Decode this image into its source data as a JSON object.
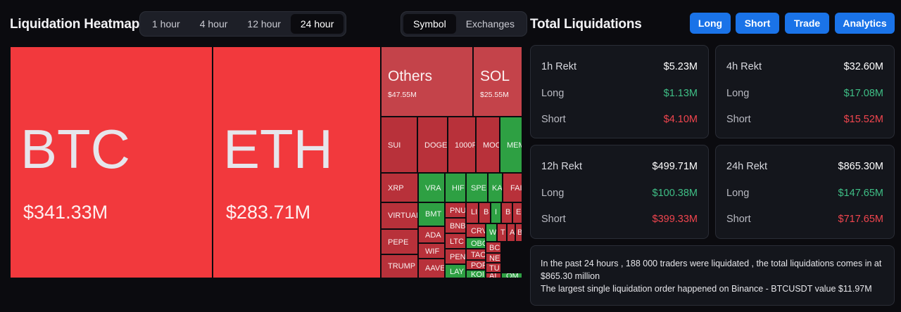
{
  "heatmap": {
    "title": "Liquidation Heatmap",
    "time_tabs": [
      "1 hour",
      "4 hour",
      "12 hour",
      "24 hour"
    ],
    "active_time_tab": "24 hour",
    "view_tabs": [
      "Symbol",
      "Exchanges"
    ],
    "active_view_tab": "Symbol"
  },
  "total": {
    "title": "Total Liquidations",
    "buttons": [
      "Long",
      "Short",
      "Trade",
      "Analytics"
    ]
  },
  "cells": [
    {
      "name": "BTC",
      "value": "$341.33M",
      "color": "r1"
    },
    {
      "name": "ETH",
      "value": "$283.71M",
      "color": "r1"
    },
    {
      "name": "Others",
      "value": "$47.55M",
      "color": "r2"
    },
    {
      "name": "SOL",
      "value": "$25.55M",
      "color": "r2"
    },
    {
      "name": "SUI",
      "color": "r3"
    },
    {
      "name": "DOGE",
      "color": "r3"
    },
    {
      "name": "1000P",
      "color": "r3"
    },
    {
      "name": "MOO",
      "color": "r3"
    },
    {
      "name": "MEM",
      "color": "g1"
    },
    {
      "name": "XRP",
      "color": "r3"
    },
    {
      "name": "VRA",
      "color": "g1"
    },
    {
      "name": "HIF",
      "color": "g1"
    },
    {
      "name": "SPE",
      "color": "g1"
    },
    {
      "name": "KA",
      "color": "g1"
    },
    {
      "name": "FAI",
      "color": "r3"
    },
    {
      "name": "VIRTUAL",
      "color": "r3"
    },
    {
      "name": "BMT",
      "color": "g1"
    },
    {
      "name": "PNU",
      "color": "r3"
    },
    {
      "name": "LI",
      "color": "r3"
    },
    {
      "name": "B",
      "color": "r3"
    },
    {
      "name": "I",
      "color": "g1"
    },
    {
      "name": "B",
      "color": "r3"
    },
    {
      "name": "E",
      "color": "r3"
    },
    {
      "name": "PEPE",
      "color": "r3"
    },
    {
      "name": "ADA",
      "color": "r3"
    },
    {
      "name": "BNB",
      "color": "r3"
    },
    {
      "name": "CRV",
      "color": "r3"
    },
    {
      "name": "W",
      "color": "g1"
    },
    {
      "name": "T",
      "color": "r3"
    },
    {
      "name": "A",
      "color": "r3"
    },
    {
      "name": "B",
      "color": "r3"
    },
    {
      "name": "WIF",
      "color": "r3"
    },
    {
      "name": "LTC",
      "color": "r3"
    },
    {
      "name": "OBO",
      "color": "g1"
    },
    {
      "name": "BC",
      "color": "r3"
    },
    {
      "name": "TRUMP",
      "color": "r3"
    },
    {
      "name": "PEN",
      "color": "r3"
    },
    {
      "name": "TAC",
      "color": "r3"
    },
    {
      "name": "NE",
      "color": "r3"
    },
    {
      "name": "AAVE",
      "color": "r3"
    },
    {
      "name": "LAY",
      "color": "g1"
    },
    {
      "name": "POP",
      "color": "r3"
    },
    {
      "name": "TU",
      "color": "r3"
    },
    {
      "name": "KOI",
      "color": "g1"
    },
    {
      "name": "AI",
      "color": "r3"
    },
    {
      "name": "OM",
      "color": "g1"
    }
  ],
  "cards": [
    {
      "title": "1h Rekt",
      "total": "$5.23M",
      "long_label": "Long",
      "long": "$1.13M",
      "short_label": "Short",
      "short": "$4.10M"
    },
    {
      "title": "4h Rekt",
      "total": "$32.60M",
      "long_label": "Long",
      "long": "$17.08M",
      "short_label": "Short",
      "short": "$15.52M"
    },
    {
      "title": "12h Rekt",
      "total": "$499.71M",
      "long_label": "Long",
      "long": "$100.38M",
      "short_label": "Short",
      "short": "$399.33M"
    },
    {
      "title": "24h Rekt",
      "total": "$865.30M",
      "long_label": "Long",
      "long": "$147.65M",
      "short_label": "Short",
      "short": "$717.65M"
    }
  ],
  "summary": {
    "line1": "In the past 24 hours , 188 000 traders were liquidated , the total liquidations comes in at $865.30 million",
    "line2": "The largest single liquidation order happened on Binance - BTCUSDT value $11.97M"
  },
  "colors": {
    "accent": "#1a73e8",
    "long": "#3fbf86",
    "short": "#f0454e",
    "heat_red": "#f2393d",
    "heat_dark_red": "#c4434a",
    "heat_green": "#2ea043"
  }
}
